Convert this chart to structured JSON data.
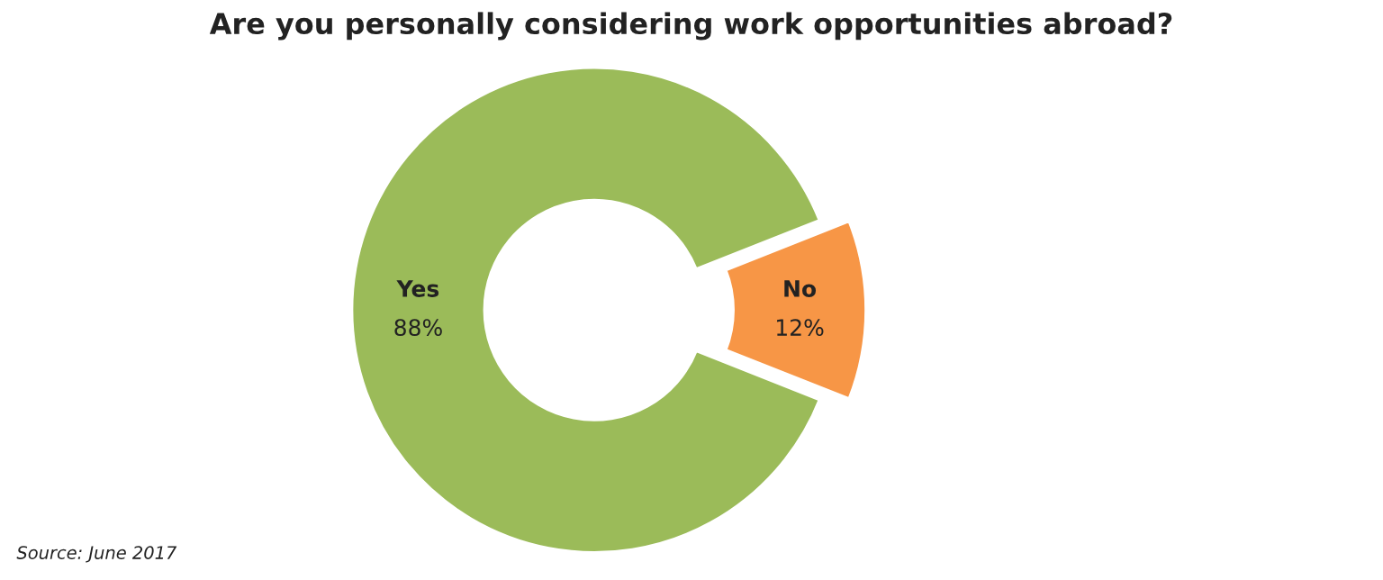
{
  "chart_data": {
    "type": "donut",
    "title": "Are you personally considering work opportunities abroad?",
    "categories": [
      "Yes",
      "No"
    ],
    "values": [
      88,
      12
    ],
    "value_labels": [
      "88%",
      "12%"
    ],
    "colors": [
      "#9bbb59",
      "#f79646"
    ],
    "annotations": [
      "Source: June 2017"
    ]
  }
}
